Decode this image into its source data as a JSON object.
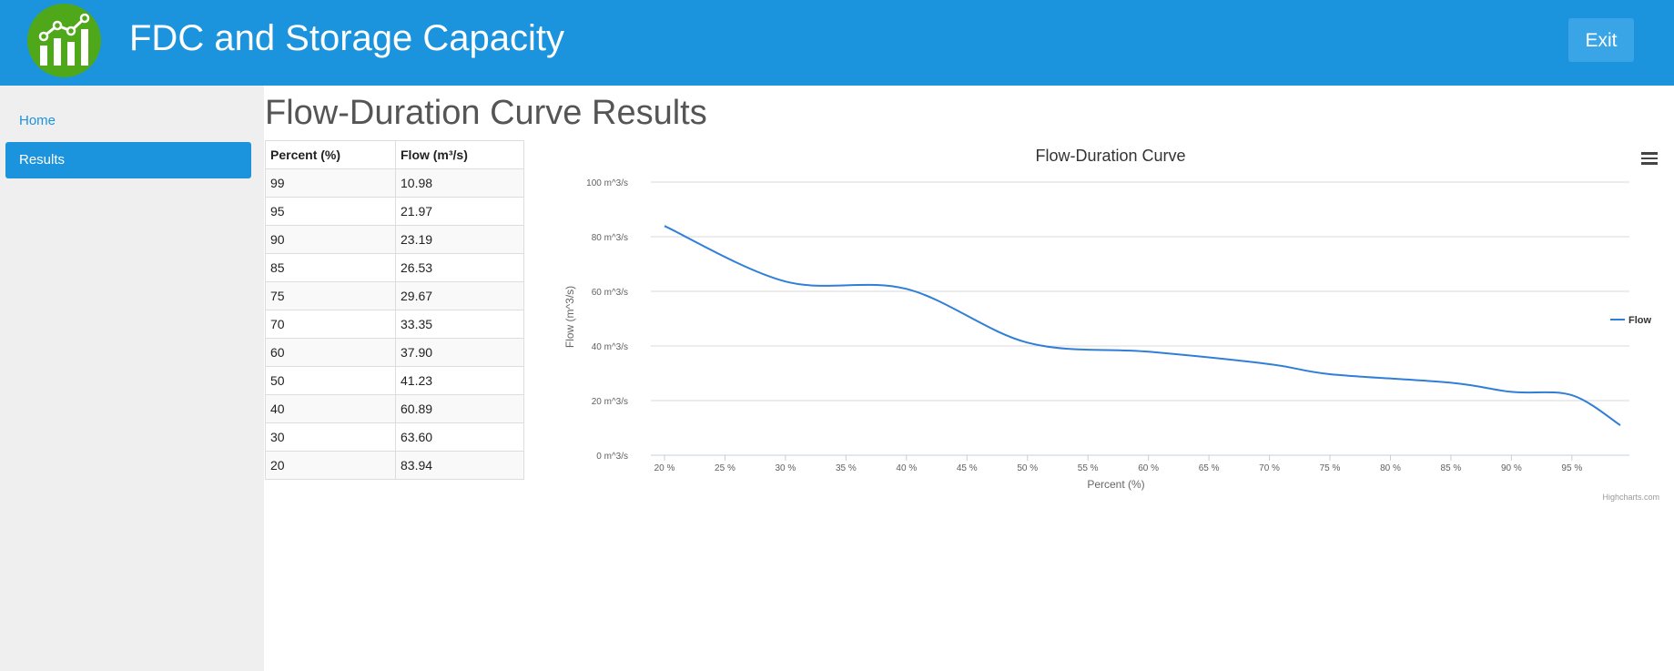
{
  "header": {
    "title": "FDC and Storage Capacity",
    "exit_label": "Exit",
    "logo_icon": "chart-logo-icon",
    "colors": {
      "bar": "#1b94dd",
      "logo": "#4fa81a"
    }
  },
  "sidebar": {
    "items": [
      {
        "label": "Home",
        "active": false
      },
      {
        "label": "Results",
        "active": true
      }
    ]
  },
  "main": {
    "title": "Flow-Duration Curve Results",
    "table": {
      "headers": [
        "Percent (%)",
        "Flow (m³/s)"
      ],
      "rows": [
        [
          "99",
          "10.98"
        ],
        [
          "95",
          "21.97"
        ],
        [
          "90",
          "23.19"
        ],
        [
          "85",
          "26.53"
        ],
        [
          "75",
          "29.67"
        ],
        [
          "70",
          "33.35"
        ],
        [
          "60",
          "37.90"
        ],
        [
          "50",
          "41.23"
        ],
        [
          "40",
          "60.89"
        ],
        [
          "30",
          "63.60"
        ],
        [
          "20",
          "83.94"
        ]
      ]
    },
    "chart_menu_icon": "hamburger-menu-icon"
  },
  "chart_data": {
    "type": "line",
    "title": "Flow-Duration Curve",
    "xlabel": "Percent (%)",
    "ylabel": "Flow (m^3/s)",
    "xlim": [
      20,
      99
    ],
    "ylim": [
      0,
      100
    ],
    "x_ticks": [
      20,
      25,
      30,
      35,
      40,
      45,
      50,
      55,
      60,
      65,
      70,
      75,
      80,
      85,
      90,
      95
    ],
    "x_tick_labels": [
      "20 %",
      "25 %",
      "30 %",
      "35 %",
      "40 %",
      "45 %",
      "50 %",
      "55 %",
      "60 %",
      "65 %",
      "70 %",
      "75 %",
      "80 %",
      "85 %",
      "90 %",
      "95 %"
    ],
    "y_ticks": [
      0,
      20,
      40,
      60,
      80,
      100
    ],
    "y_tick_labels": [
      "0 m^3/s",
      "20 m^3/s",
      "40 m^3/s",
      "60 m^3/s",
      "80 m^3/s",
      "100 m^3/s"
    ],
    "grid": true,
    "legend": "right",
    "series": [
      {
        "name": "Flow",
        "color": "#2f7ed8",
        "x": [
          20,
          30,
          40,
          50,
          60,
          70,
          75,
          85,
          90,
          95,
          99
        ],
        "values": [
          83.94,
          63.6,
          60.89,
          41.23,
          37.9,
          33.35,
          29.67,
          26.53,
          23.19,
          21.97,
          10.98
        ]
      }
    ],
    "credits": "Highcharts.com"
  }
}
